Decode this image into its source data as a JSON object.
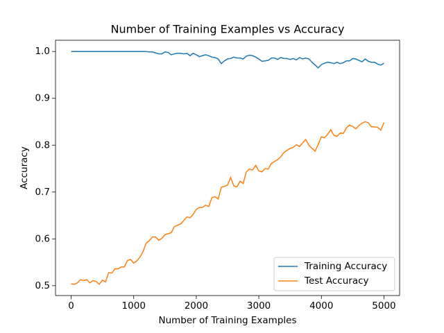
{
  "chart_data": {
    "type": "line",
    "title": "Number of Training Examples vs Accuracy",
    "xlabel": "Number of Training Examples",
    "ylabel": "Accuracy",
    "x": [
      0,
      50,
      100,
      150,
      200,
      250,
      300,
      350,
      400,
      450,
      500,
      550,
      600,
      650,
      700,
      750,
      800,
      850,
      900,
      950,
      1000,
      1050,
      1100,
      1150,
      1200,
      1250,
      1300,
      1350,
      1400,
      1450,
      1500,
      1550,
      1600,
      1650,
      1700,
      1750,
      1800,
      1850,
      1900,
      1950,
      2000,
      2050,
      2100,
      2150,
      2200,
      2250,
      2300,
      2350,
      2400,
      2450,
      2500,
      2550,
      2600,
      2650,
      2700,
      2750,
      2800,
      2850,
      2900,
      2950,
      3000,
      3050,
      3100,
      3150,
      3200,
      3250,
      3300,
      3350,
      3400,
      3450,
      3500,
      3550,
      3600,
      3650,
      3700,
      3750,
      3800,
      3850,
      3900,
      3950,
      4000,
      4050,
      4100,
      4150,
      4200,
      4250,
      4300,
      4350,
      4400,
      4450,
      4500,
      4550,
      4600,
      4650,
      4700,
      4750,
      4800,
      4850,
      4900,
      4950,
      5000
    ],
    "series": [
      {
        "name": "Training Accuracy",
        "color": "#1f77b4",
        "values": [
          1.0,
          1.0,
          1.0,
          1.0,
          1.0,
          1.0,
          1.0,
          1.0,
          1.0,
          1.0,
          1.0,
          1.0,
          1.0,
          1.0,
          1.0,
          1.0,
          1.0,
          1.0,
          1.0,
          1.0,
          1.0,
          1.0,
          1.0,
          1.0,
          1.0,
          0.999,
          0.999,
          0.997,
          0.995,
          0.995,
          0.999,
          0.998,
          0.993,
          0.995,
          0.996,
          0.996,
          0.995,
          0.996,
          0.991,
          0.996,
          0.993,
          0.989,
          0.991,
          0.993,
          0.991,
          0.988,
          0.987,
          0.984,
          0.974,
          0.98,
          0.984,
          0.985,
          0.988,
          0.986,
          0.986,
          0.984,
          0.99,
          0.992,
          0.991,
          0.988,
          0.984,
          0.979,
          0.98,
          0.981,
          0.986,
          0.986,
          0.983,
          0.987,
          0.985,
          0.985,
          0.983,
          0.985,
          0.982,
          0.987,
          0.984,
          0.986,
          0.984,
          0.977,
          0.971,
          0.965,
          0.972,
          0.975,
          0.977,
          0.976,
          0.974,
          0.977,
          0.974,
          0.976,
          0.98,
          0.98,
          0.985,
          0.984,
          0.981,
          0.978,
          0.984,
          0.979,
          0.977,
          0.977,
          0.973,
          0.971,
          0.975
        ]
      },
      {
        "name": "Test Accuracy",
        "color": "#ff7f0e",
        "values": [
          0.504,
          0.503,
          0.506,
          0.513,
          0.511,
          0.513,
          0.506,
          0.511,
          0.509,
          0.503,
          0.512,
          0.508,
          0.528,
          0.527,
          0.536,
          0.536,
          0.54,
          0.54,
          0.554,
          0.556,
          0.548,
          0.553,
          0.561,
          0.573,
          0.591,
          0.596,
          0.604,
          0.604,
          0.597,
          0.601,
          0.609,
          0.611,
          0.613,
          0.626,
          0.629,
          0.632,
          0.639,
          0.647,
          0.645,
          0.652,
          0.663,
          0.667,
          0.667,
          0.672,
          0.669,
          0.688,
          0.69,
          0.685,
          0.71,
          0.712,
          0.715,
          0.731,
          0.713,
          0.711,
          0.723,
          0.718,
          0.743,
          0.749,
          0.747,
          0.757,
          0.745,
          0.743,
          0.75,
          0.749,
          0.761,
          0.765,
          0.769,
          0.775,
          0.784,
          0.789,
          0.793,
          0.795,
          0.801,
          0.797,
          0.805,
          0.812,
          0.8,
          0.793,
          0.787,
          0.802,
          0.818,
          0.816,
          0.823,
          0.833,
          0.821,
          0.819,
          0.826,
          0.825,
          0.837,
          0.843,
          0.84,
          0.835,
          0.842,
          0.847,
          0.85,
          0.848,
          0.839,
          0.839,
          0.838,
          0.832,
          0.848
        ]
      }
    ],
    "xlim": [
      -250,
      5250
    ],
    "xticks": [
      0,
      1000,
      2000,
      3000,
      4000,
      5000
    ],
    "ylim": [
      0.479,
      1.024
    ],
    "yticks": [
      0.5,
      0.6,
      0.7,
      0.8,
      0.9,
      {
        "value": 1,
        "label": "1.0"
      }
    ],
    "legend": "lower right"
  }
}
